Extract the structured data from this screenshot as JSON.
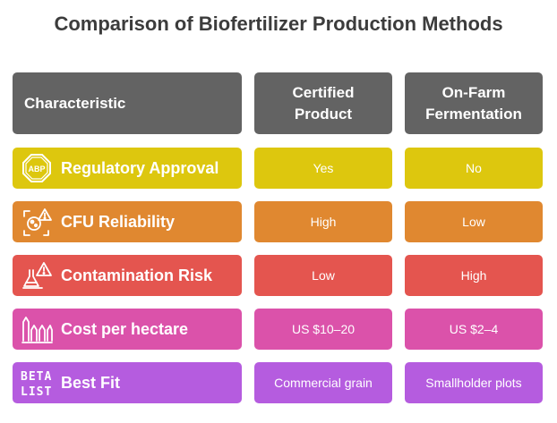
{
  "title": "Comparison of Biofertilizer Production Methods",
  "header": {
    "characteristic": "Characteristic",
    "certified": "Certified Product",
    "onfarm": "On-Farm Fermentation"
  },
  "rows": [
    {
      "label": "Regulatory Approval",
      "certified": "Yes",
      "onfarm": "No",
      "icon": "abp-stop-sign-icon",
      "icon_text": "ABP",
      "color": "#ddc70e"
    },
    {
      "label": "CFU Reliability",
      "certified": "High",
      "onfarm": "Low",
      "icon": "microbe-warning-icon",
      "color": "#e08830"
    },
    {
      "label": "Contamination Risk",
      "certified": "Low",
      "onfarm": "High",
      "icon": "lab-warning-icon",
      "color": "#e4554f"
    },
    {
      "label": "Cost per hectare",
      "certified": "US $10–20",
      "onfarm": "US $2–4",
      "icon": "bars-icon",
      "color": "#db52aa"
    },
    {
      "label": "Best Fit",
      "certified": "Commercial grain",
      "onfarm": "Smallholder plots",
      "icon": "beta-list-logo",
      "icon_text": "BETA LIST",
      "color": "#b55cdf"
    }
  ]
}
